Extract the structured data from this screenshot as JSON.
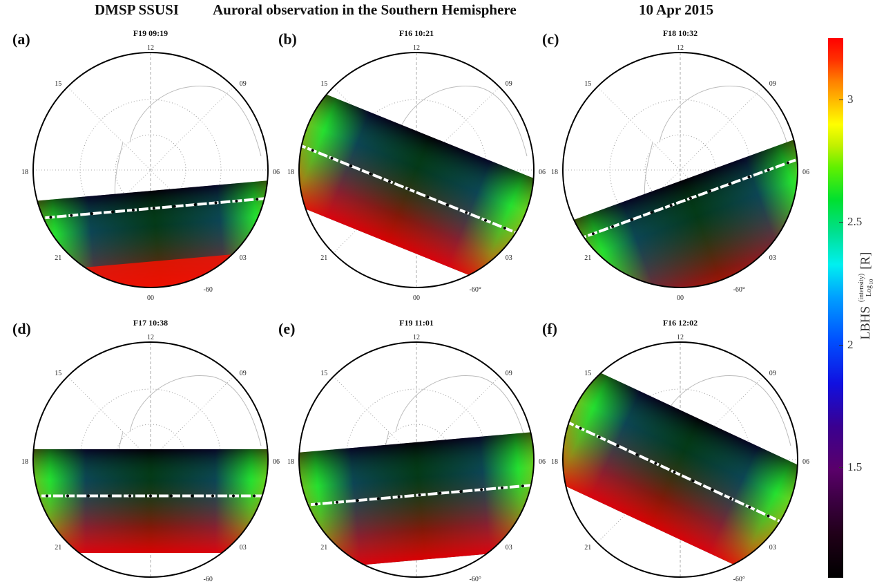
{
  "title": {
    "instrument": "DMSP SSUSI",
    "description": "Auroral observation in the Southern Hemisphere",
    "date": "10 Apr 2015"
  },
  "panels": [
    {
      "letter": "(a)",
      "title": "F19 09:19",
      "lat_label": "-60"
    },
    {
      "letter": "(b)",
      "title": "F16 10:21",
      "lat_label": "-60°"
    },
    {
      "letter": "(c)",
      "title": "F18 10:32",
      "lat_label": "-60°"
    },
    {
      "letter": "(d)",
      "title": "F17 10:38",
      "lat_label": "-60"
    },
    {
      "letter": "(e)",
      "title": "F19 11:01",
      "lat_label": "-60°"
    },
    {
      "letter": "(f)",
      "title": "F16 12:02",
      "lat_label": "-60°"
    }
  ],
  "mlt_labels": [
    "12",
    "09",
    "06",
    "03",
    "00",
    "21",
    "18",
    "15"
  ],
  "colorbar": {
    "ticks": [
      "3",
      "2.5",
      "2",
      "1.5"
    ],
    "tick_values": [
      3,
      2.5,
      2,
      1.5
    ],
    "range": [
      1.05,
      3.25
    ],
    "label_main": "LBHS",
    "label_log": "Log",
    "label_base": "10",
    "label_sup": "(intensity)",
    "label_unit": "[R]"
  },
  "colors": {
    "high": "#ff0000",
    "mid": "#00e030",
    "low": "#000000",
    "track": "#ffffff"
  }
}
